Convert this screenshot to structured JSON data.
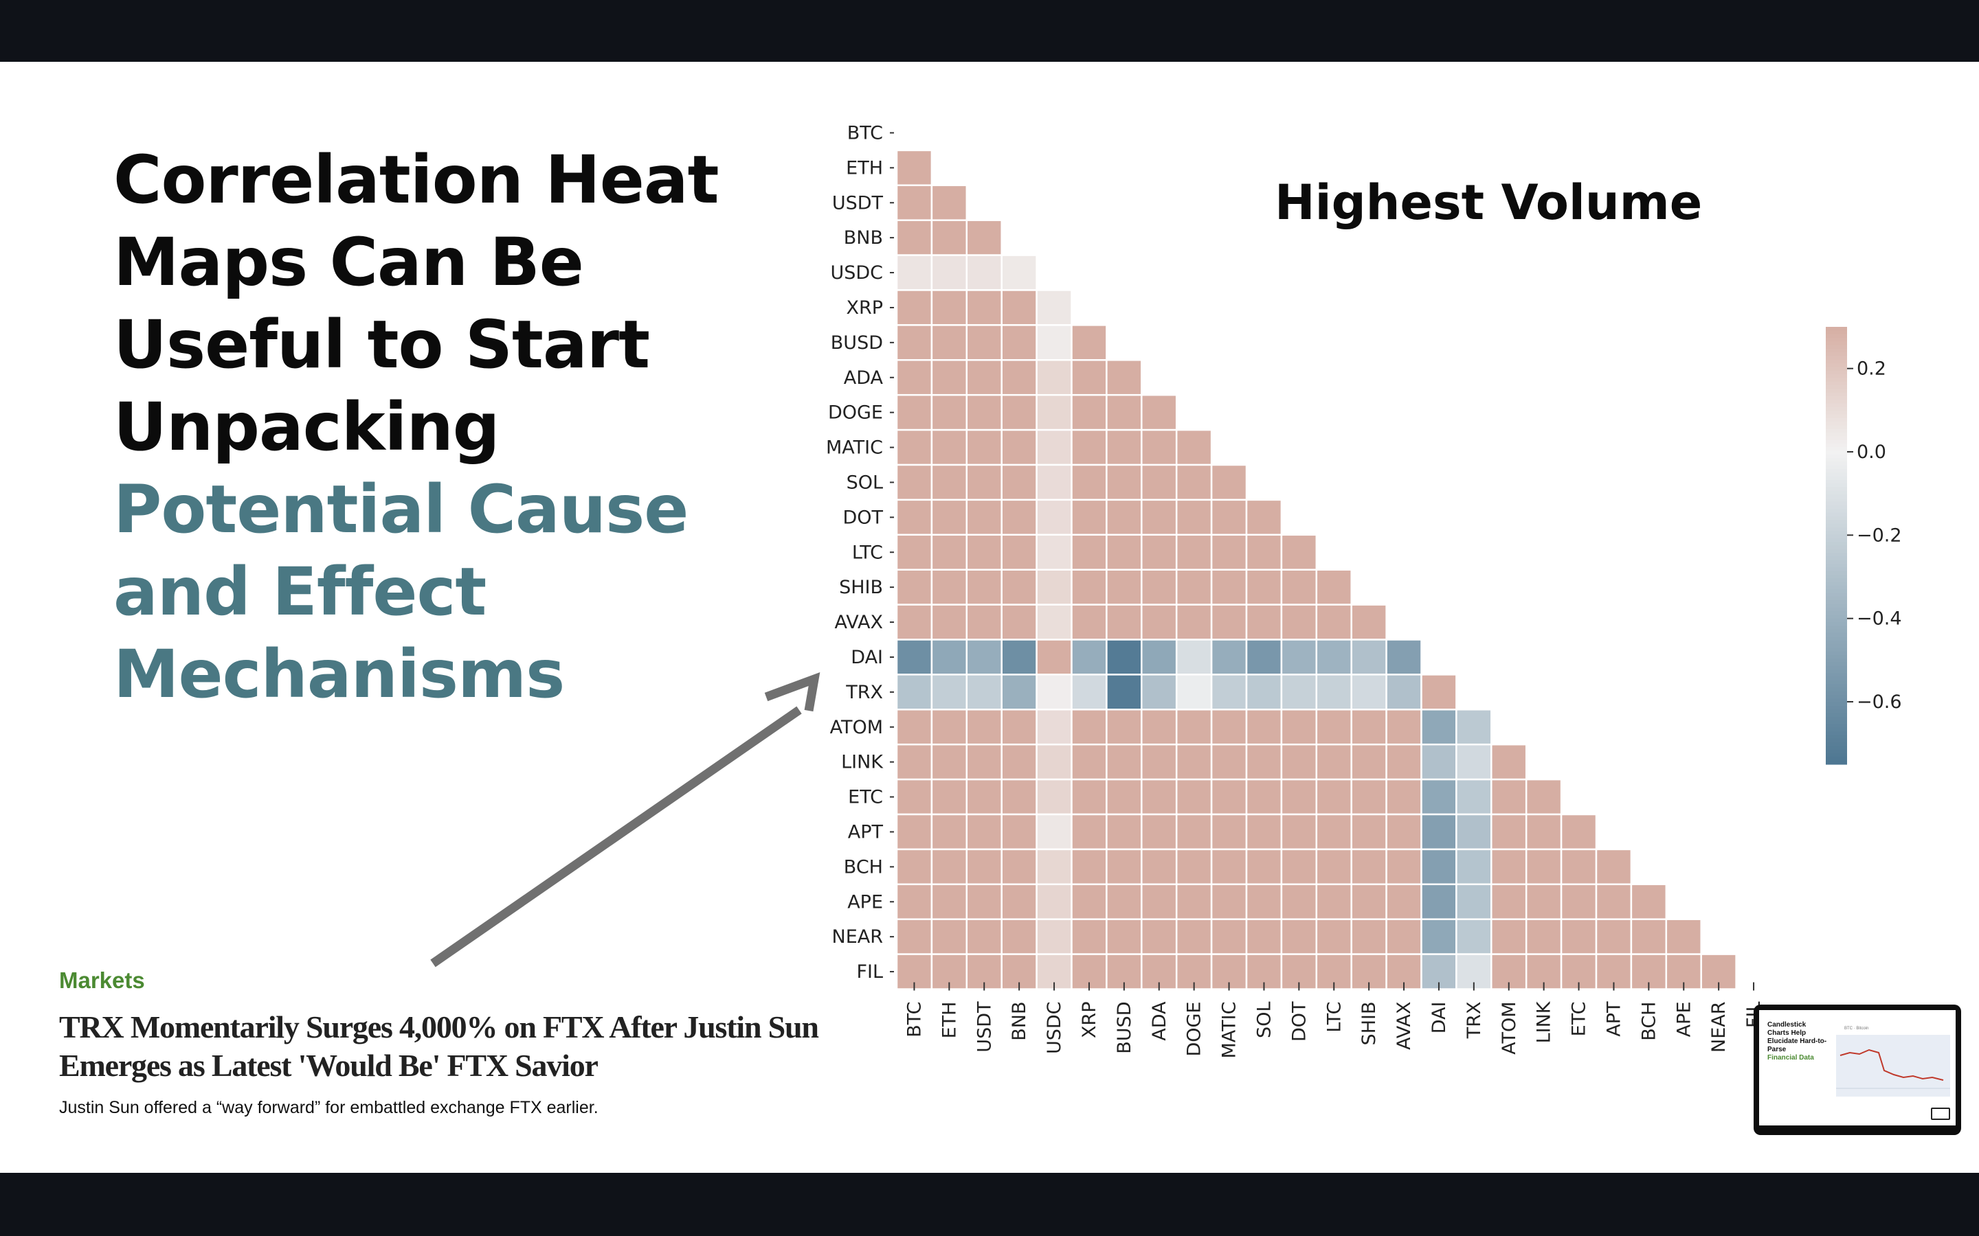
{
  "headline": {
    "lines": [
      "Correlation Heat",
      "Maps Can Be",
      "Useful to Start",
      "Unpacking"
    ],
    "highlight_lines": [
      "Potential Cause",
      "and Effect",
      "Mechanisms"
    ],
    "color_dark": "#0b0b0b",
    "color_highlight": "#4a7883"
  },
  "heatmap_title": "Highest Volume",
  "news_card": {
    "category": "Markets",
    "title": "TRX Momentarily Surges 4,000% on FTX After Justin Sun Emerges as Latest 'Would Be' FTX Savior",
    "subtitle": "Justin Sun offered a “way forward” for embattled exchange FTX earlier.",
    "category_color": "#4b8a32"
  },
  "thumbnail": {
    "title": "Candlestick Charts Help Elucidate Hard-to-Parse",
    "title_highlight": "Financial Data",
    "chart_label": "BTC · Bitcoin",
    "icon": "slide-thumbnail-icon"
  },
  "chart_data": {
    "type": "heatmap",
    "subtype": "lower-triangle-correlation",
    "title": "Highest Volume",
    "labels": [
      "BTC",
      "ETH",
      "USDT",
      "BNB",
      "USDC",
      "XRP",
      "BUSD",
      "ADA",
      "DOGE",
      "MATIC",
      "SOL",
      "DOT",
      "LTC",
      "SHIB",
      "AVAX",
      "DAI",
      "TRX",
      "ATOM",
      "LINK",
      "ETC",
      "APT",
      "BCH",
      "APE",
      "NEAR",
      "FIL"
    ],
    "x_tick_labels": [
      "BTC",
      "ETH",
      "USDT",
      "BNB",
      "USDC",
      "XRP",
      "BUSD",
      "ADA",
      "DOGE",
      "MATIC",
      "SOL",
      "DOT",
      "LTC",
      "SHIB",
      "AVAX",
      "DAI",
      "TRX",
      "ATOM",
      "LINK",
      "ETC",
      "APT",
      "BCH",
      "APE",
      "NEAR",
      "FIL"
    ],
    "colorbar": {
      "vmin": -0.75,
      "vmax": 0.3,
      "ticks": [
        0.2,
        0.0,
        -0.2,
        -0.4,
        -0.6
      ],
      "tick_labels": [
        "0.2",
        "0.0",
        "−0.2",
        "−0.4",
        "−0.6"
      ],
      "colormap": "diverging blue-white-red (muted)",
      "color_low": "#4d7691",
      "color_mid": "#f2f2f2",
      "color_high": "#d6aea3"
    },
    "values": [
      [],
      [
        0.3
      ],
      [
        0.3,
        0.3
      ],
      [
        0.3,
        0.3,
        0.3
      ],
      [
        0.06,
        0.07,
        0.07,
        0.04
      ],
      [
        0.3,
        0.3,
        0.3,
        0.3,
        0.05
      ],
      [
        0.3,
        0.3,
        0.3,
        0.3,
        0.03,
        0.3
      ],
      [
        0.3,
        0.3,
        0.3,
        0.3,
        0.12,
        0.3,
        0.3
      ],
      [
        0.3,
        0.3,
        0.3,
        0.3,
        0.12,
        0.3,
        0.3,
        0.3
      ],
      [
        0.3,
        0.3,
        0.3,
        0.3,
        0.11,
        0.3,
        0.3,
        0.3,
        0.3
      ],
      [
        0.3,
        0.3,
        0.3,
        0.3,
        0.1,
        0.3,
        0.3,
        0.3,
        0.3,
        0.3
      ],
      [
        0.3,
        0.3,
        0.3,
        0.3,
        0.1,
        0.3,
        0.3,
        0.3,
        0.3,
        0.3,
        0.3
      ],
      [
        0.3,
        0.3,
        0.3,
        0.3,
        0.08,
        0.3,
        0.3,
        0.3,
        0.3,
        0.3,
        0.3,
        0.3
      ],
      [
        0.3,
        0.3,
        0.3,
        0.3,
        0.12,
        0.3,
        0.3,
        0.3,
        0.3,
        0.3,
        0.3,
        0.3,
        0.3
      ],
      [
        0.3,
        0.3,
        0.3,
        0.3,
        0.09,
        0.3,
        0.3,
        0.3,
        0.3,
        0.3,
        0.3,
        0.3,
        0.3,
        0.3
      ],
      [
        -0.6,
        -0.45,
        -0.42,
        -0.6,
        0.3,
        -0.42,
        -0.72,
        -0.45,
        -0.12,
        -0.42,
        -0.55,
        -0.38,
        -0.38,
        -0.3,
        -0.5
      ],
      [
        -0.28,
        -0.22,
        -0.22,
        -0.4,
        0.02,
        -0.15,
        -0.72,
        -0.3,
        -0.03,
        -0.22,
        -0.25,
        -0.2,
        -0.2,
        -0.15,
        -0.3,
        0.3
      ],
      [
        0.3,
        0.3,
        0.3,
        0.3,
        0.1,
        0.3,
        0.3,
        0.3,
        0.3,
        0.3,
        0.3,
        0.3,
        0.3,
        0.3,
        0.3,
        -0.45,
        -0.25
      ],
      [
        0.3,
        0.3,
        0.3,
        0.3,
        0.13,
        0.3,
        0.3,
        0.3,
        0.3,
        0.3,
        0.3,
        0.3,
        0.3,
        0.3,
        0.3,
        -0.3,
        -0.15,
        0.3
      ],
      [
        0.3,
        0.3,
        0.3,
        0.3,
        0.13,
        0.3,
        0.3,
        0.3,
        0.3,
        0.3,
        0.3,
        0.3,
        0.3,
        0.3,
        0.3,
        -0.45,
        -0.25,
        0.3,
        0.3
      ],
      [
        0.3,
        0.3,
        0.3,
        0.3,
        0.05,
        0.3,
        0.3,
        0.3,
        0.3,
        0.3,
        0.3,
        0.3,
        0.3,
        0.3,
        0.3,
        -0.5,
        -0.3,
        0.3,
        0.3,
        0.3
      ],
      [
        0.3,
        0.3,
        0.3,
        0.3,
        0.12,
        0.3,
        0.3,
        0.3,
        0.3,
        0.3,
        0.3,
        0.3,
        0.3,
        0.3,
        0.3,
        -0.5,
        -0.28,
        0.3,
        0.3,
        0.3,
        0.3
      ],
      [
        0.3,
        0.3,
        0.3,
        0.3,
        0.13,
        0.3,
        0.3,
        0.3,
        0.3,
        0.3,
        0.3,
        0.3,
        0.3,
        0.3,
        0.3,
        -0.5,
        -0.28,
        0.3,
        0.3,
        0.3,
        0.3,
        0.3
      ],
      [
        0.3,
        0.3,
        0.3,
        0.3,
        0.13,
        0.3,
        0.3,
        0.3,
        0.3,
        0.3,
        0.3,
        0.3,
        0.3,
        0.3,
        0.3,
        -0.45,
        -0.25,
        0.3,
        0.3,
        0.3,
        0.3,
        0.3,
        0.3
      ],
      [
        0.3,
        0.3,
        0.3,
        0.3,
        0.13,
        0.3,
        0.3,
        0.3,
        0.3,
        0.3,
        0.3,
        0.3,
        0.3,
        0.3,
        0.3,
        -0.3,
        -0.1,
        0.3,
        0.3,
        0.3,
        0.3,
        0.3,
        0.3,
        0.3
      ]
    ],
    "grid": false,
    "legend": "colorbar right"
  }
}
